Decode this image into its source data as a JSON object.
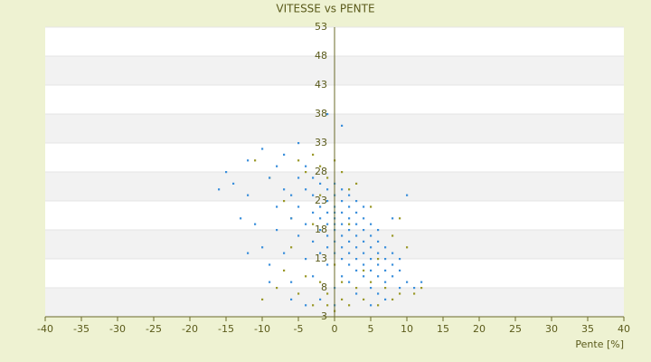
{
  "chart_data": {
    "type": "scatter",
    "title": "VITESSE vs PENTE",
    "x_label": "Pente [%]",
    "xlim": [
      -40,
      40
    ],
    "xticks": [
      -40,
      -35,
      -30,
      -25,
      -20,
      -15,
      -10,
      -5,
      0,
      5,
      10,
      15,
      20,
      25,
      30,
      35,
      40
    ],
    "ylim": [
      3,
      53
    ],
    "yticks": [
      3,
      8,
      13,
      18,
      23,
      28,
      33,
      38,
      43,
      48,
      53
    ],
    "band_colors": [
      "#ffffff",
      "#f2f2f2"
    ],
    "series": [
      {
        "color": "#9a9828",
        "x": [
          -10,
          -9,
          -8,
          -7,
          -6,
          -5,
          -5,
          -4,
          -4,
          -3,
          -3,
          -2,
          -2,
          -2,
          -1,
          -1,
          -1,
          0,
          0,
          0,
          1,
          1,
          1,
          2,
          2,
          3,
          3,
          4,
          4,
          5,
          5,
          6,
          6,
          7,
          8,
          8,
          9,
          9,
          10,
          11,
          12,
          -7,
          -11,
          -3,
          2,
          -6
        ],
        "y": [
          6,
          27,
          8,
          11,
          15,
          30,
          7,
          28,
          10,
          31,
          5,
          29,
          9,
          24,
          27,
          7,
          5,
          30,
          4,
          12,
          28,
          6,
          9,
          25,
          5,
          8,
          26,
          6,
          11,
          9,
          22,
          5,
          13,
          8,
          6,
          17,
          7,
          20,
          15,
          7,
          8,
          23,
          30,
          19,
          19,
          20
        ]
      },
      {
        "color": "#3a8fdb",
        "x": [
          -16,
          -15,
          -14,
          -12,
          -12,
          -11,
          -10,
          -10,
          -9,
          -9,
          -8,
          -8,
          -8,
          -7,
          -7,
          -7,
          -6,
          -6,
          -6,
          -5,
          -5,
          -5,
          -5,
          -4,
          -4,
          -4,
          -4,
          -3,
          -3,
          -3,
          -3,
          -3,
          -2,
          -2,
          -2,
          -2,
          -2,
          -2,
          -1,
          -1,
          -1,
          -1,
          -1,
          -1,
          -1,
          -1,
          0,
          0,
          0,
          0,
          0,
          0,
          0,
          0,
          0,
          0,
          0,
          1,
          1,
          1,
          1,
          1,
          1,
          1,
          1,
          1,
          2,
          2,
          2,
          2,
          2,
          2,
          2,
          2,
          3,
          3,
          3,
          3,
          3,
          3,
          3,
          3,
          4,
          4,
          4,
          4,
          4,
          4,
          4,
          5,
          5,
          5,
          5,
          5,
          5,
          6,
          6,
          6,
          6,
          6,
          6,
          7,
          7,
          7,
          7,
          8,
          8,
          8,
          8,
          9,
          9,
          9,
          10,
          10,
          11,
          12,
          -9,
          -12,
          -13,
          -6,
          -4,
          5,
          7
        ],
        "y": [
          25,
          28,
          26,
          24,
          30,
          19,
          32,
          15,
          27,
          12,
          22,
          18,
          29,
          25,
          14,
          31,
          20,
          9,
          24,
          27,
          17,
          22,
          33,
          19,
          25,
          13,
          29,
          21,
          16,
          24,
          10,
          27,
          18,
          22,
          20,
          14,
          26,
          6,
          19,
          23,
          17,
          21,
          15,
          25,
          12,
          38,
          20,
          18,
          22,
          16,
          24,
          14,
          19,
          21,
          26,
          8,
          5,
          17,
          21,
          19,
          15,
          23,
          13,
          25,
          10,
          36,
          18,
          20,
          16,
          22,
          14,
          12,
          24,
          9,
          17,
          19,
          15,
          21,
          13,
          11,
          23,
          7,
          16,
          18,
          14,
          20,
          12,
          10,
          22,
          15,
          17,
          13,
          11,
          19,
          8,
          14,
          16,
          12,
          10,
          18,
          7,
          13,
          15,
          11,
          9,
          12,
          14,
          10,
          20,
          11,
          8,
          13,
          9,
          24,
          8,
          9,
          9,
          14,
          20,
          6,
          5,
          5,
          6
        ]
      }
    ]
  }
}
